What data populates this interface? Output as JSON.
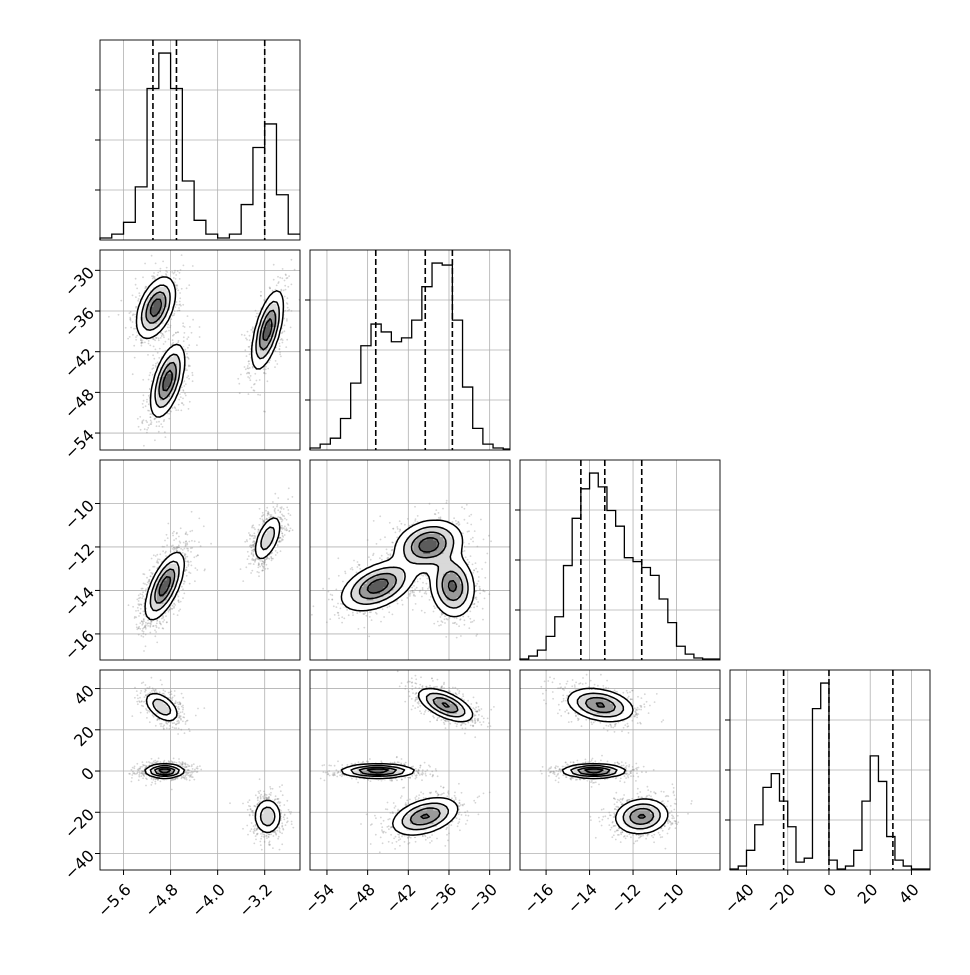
{
  "chart_data": {
    "type": "corner",
    "parameters": [
      {
        "id": "p0",
        "range": [
          -6.0,
          -2.6
        ],
        "ticks": [
          -5.6,
          -4.8,
          -4.0,
          -3.2
        ],
        "tick_labels": [
          "−5.6",
          "−4.8",
          "−4.0",
          "−3.2"
        ],
        "quantiles": [
          -5.1,
          -4.7,
          -3.2
        ],
        "hist_bins": [
          -6.0,
          -5.8,
          -5.6,
          -5.4,
          -5.2,
          -5.0,
          -4.8,
          -4.6,
          -4.4,
          -4.2,
          -4.0,
          -3.8,
          -3.6,
          -3.4,
          -3.2,
          -3.0,
          -2.8,
          -2.6
        ],
        "hist_counts": [
          0.01,
          0.03,
          0.09,
          0.27,
          0.77,
          0.95,
          0.77,
          0.3,
          0.1,
          0.03,
          0.01,
          0.03,
          0.18,
          0.47,
          0.59,
          0.23,
          0.03
        ]
      },
      {
        "id": "p1",
        "range": [
          -56.5,
          -27
        ],
        "ticks": [
          -54,
          -48,
          -42,
          -36,
          -30
        ],
        "tick_labels": [
          "−54",
          "−48",
          "−42",
          "−36",
          "−30"
        ],
        "quantiles": [
          -46.8,
          -39.5,
          -35.5
        ],
        "hist_bins": [
          -56.5,
          -55.0,
          -53.5,
          -52.0,
          -50.5,
          -49.0,
          -47.5,
          -46.0,
          -44.5,
          -43.0,
          -41.5,
          -40.0,
          -38.5,
          -37.0,
          -35.5,
          -34.0,
          -32.5,
          -31.0,
          -29.5,
          -28.0,
          -27.0
        ],
        "hist_counts": [
          0.01,
          0.03,
          0.06,
          0.16,
          0.34,
          0.53,
          0.64,
          0.6,
          0.55,
          0.57,
          0.66,
          0.83,
          0.95,
          0.94,
          0.66,
          0.32,
          0.11,
          0.03,
          0.01,
          0.005
        ]
      },
      {
        "id": "p2",
        "range": [
          -17.2,
          -8.0
        ],
        "ticks": [
          -16,
          -14,
          -12,
          -10
        ],
        "tick_labels": [
          "−16",
          "−14",
          "−12",
          "−10"
        ],
        "quantiles": [
          -14.4,
          -13.3,
          -11.6
        ],
        "hist_bins": [
          -17.2,
          -16.8,
          -16.4,
          -16.0,
          -15.6,
          -15.2,
          -14.8,
          -14.4,
          -14.0,
          -13.6,
          -13.2,
          -12.8,
          -12.4,
          -12.0,
          -11.6,
          -11.2,
          -10.8,
          -10.4,
          -10.0,
          -9.6,
          -9.2,
          -8.8,
          -8.0
        ],
        "hist_counts": [
          0.005,
          0.02,
          0.05,
          0.12,
          0.22,
          0.48,
          0.72,
          0.87,
          0.95,
          0.88,
          0.76,
          0.68,
          0.52,
          0.5,
          0.47,
          0.43,
          0.31,
          0.19,
          0.07,
          0.03,
          0.01,
          0.005
        ]
      },
      {
        "id": "p3",
        "range": [
          -48,
          49
        ],
        "ticks": [
          -40,
          -20,
          0,
          20,
          40
        ],
        "tick_labels": [
          "−40",
          "−20",
          "0",
          "20",
          "40"
        ],
        "quantiles": [
          -22,
          0,
          31
        ],
        "hist_bins": [
          -48,
          -44,
          -40,
          -36,
          -32,
          -28,
          -24,
          -20,
          -16,
          -12,
          -8,
          -4,
          0,
          4,
          8,
          12,
          16,
          20,
          24,
          28,
          32,
          36,
          40,
          44,
          49
        ],
        "hist_counts": [
          0.005,
          0.02,
          0.1,
          0.23,
          0.42,
          0.49,
          0.35,
          0.22,
          0.04,
          0.06,
          0.82,
          0.95,
          0.05,
          0.005,
          0.02,
          0.1,
          0.35,
          0.58,
          0.45,
          0.17,
          0.05,
          0.02,
          0.005,
          0.005
        ]
      }
    ],
    "pairs": [
      {
        "row": 1,
        "col": 0,
        "modes": [
          {
            "cx": -5.05,
            "cy": -35.5,
            "sx": 0.16,
            "sy": 2.2,
            "r": 0.45,
            "w": 1.0
          },
          {
            "cx": -4.85,
            "cy": -46.3,
            "sx": 0.14,
            "sy": 2.6,
            "r": 0.55,
            "w": 1.0
          },
          {
            "cx": -3.15,
            "cy": -38.8,
            "sx": 0.13,
            "sy": 2.8,
            "r": 0.6,
            "w": 1.0
          }
        ]
      },
      {
        "row": 2,
        "col": 0,
        "modes": [
          {
            "cx": -4.9,
            "cy": -13.8,
            "sx": 0.16,
            "sy": 0.75,
            "r": 0.65,
            "w": 2.0
          },
          {
            "cx": -3.15,
            "cy": -11.6,
            "sx": 0.12,
            "sy": 0.55,
            "r": 0.55,
            "w": 1.0
          }
        ]
      },
      {
        "row": 2,
        "col": 1,
        "modes": [
          {
            "cx": -46.5,
            "cy": -13.8,
            "sx": 2.6,
            "sy": 0.55,
            "r": 0.45,
            "w": 1.0
          },
          {
            "cx": -39.0,
            "cy": -11.9,
            "sx": 2.4,
            "sy": 0.55,
            "r": 0.2,
            "w": 1.0
          },
          {
            "cx": -35.5,
            "cy": -13.8,
            "sx": 1.6,
            "sy": 0.7,
            "r": -0.1,
            "w": 0.9
          }
        ]
      },
      {
        "row": 3,
        "col": 0,
        "modes": [
          {
            "cx": -4.95,
            "cy": 31,
            "sx": 0.15,
            "sy": 3.8,
            "r": -0.5,
            "w": 0.8
          },
          {
            "cx": -4.9,
            "cy": 0,
            "sx": 0.16,
            "sy": 1.6,
            "r": 0.0,
            "w": 1.6
          },
          {
            "cx": -3.15,
            "cy": -22,
            "sx": 0.12,
            "sy": 4.5,
            "r": 0.0,
            "w": 0.8
          }
        ]
      },
      {
        "row": 3,
        "col": 1,
        "modes": [
          {
            "cx": -36.5,
            "cy": 32,
            "sx": 2.0,
            "sy": 4.0,
            "r": -0.6,
            "w": 1.0
          },
          {
            "cx": -46.5,
            "cy": 0,
            "sx": 2.6,
            "sy": 1.6,
            "r": 0.0,
            "w": 1.2
          },
          {
            "cx": -39.5,
            "cy": -22,
            "sx": 2.4,
            "sy": 4.5,
            "r": 0.4,
            "w": 1.0
          }
        ]
      },
      {
        "row": 3,
        "col": 2,
        "modes": [
          {
            "cx": -13.5,
            "cy": 32,
            "sx": 0.75,
            "sy": 4.0,
            "r": -0.3,
            "w": 1.0
          },
          {
            "cx": -13.8,
            "cy": 0,
            "sx": 0.7,
            "sy": 1.6,
            "r": 0.0,
            "w": 1.2
          },
          {
            "cx": -11.6,
            "cy": -22,
            "sx": 0.6,
            "sy": 4.2,
            "r": 0.1,
            "w": 1.0
          }
        ]
      }
    ],
    "style": {
      "line_color": "#000000",
      "grid_color": "#b0b0b0",
      "point_color": "#888888",
      "fill_levels": [
        "#ffffff",
        "#d9d9d9",
        "#9a9a9a",
        "#5c5c5c"
      ]
    }
  }
}
